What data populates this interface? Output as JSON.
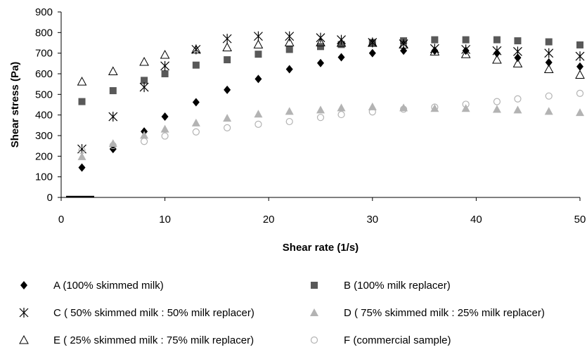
{
  "chart_data": {
    "type": "scatter",
    "xlabel": "Shear rate (1/s)",
    "ylabel": "Shear stress (Pa)",
    "xlim": [
      0,
      50
    ],
    "ylim": [
      0,
      900
    ],
    "x_ticks": [
      "0",
      "10",
      "20",
      "30",
      "40",
      "50"
    ],
    "y_ticks": [
      "0",
      "100",
      "200",
      "300",
      "400",
      "500",
      "600",
      "700",
      "800",
      "900"
    ],
    "grid": false,
    "legend_position": "bottom",
    "series": [
      {
        "name": "A (100% skimmed milk)",
        "marker": "diamond-filled",
        "color": "#000000",
        "points": [
          [
            2,
            145
          ],
          [
            5,
            235
          ],
          [
            8,
            320
          ],
          [
            10,
            392
          ],
          [
            13,
            462
          ],
          [
            16,
            522
          ],
          [
            19,
            575
          ],
          [
            22,
            622
          ],
          [
            25,
            652
          ],
          [
            27,
            680
          ],
          [
            30,
            700
          ],
          [
            33,
            712
          ],
          [
            36,
            712
          ],
          [
            39,
            712
          ],
          [
            42,
            700
          ],
          [
            44,
            678
          ],
          [
            47,
            655
          ],
          [
            50,
            635
          ]
        ]
      },
      {
        "name": "B (100% milk replacer)",
        "marker": "square-filled",
        "color": "#595959",
        "points": [
          [
            2,
            465
          ],
          [
            5,
            518
          ],
          [
            8,
            568
          ],
          [
            10,
            600
          ],
          [
            13,
            642
          ],
          [
            16,
            668
          ],
          [
            19,
            695
          ],
          [
            22,
            718
          ],
          [
            25,
            732
          ],
          [
            27,
            742
          ],
          [
            30,
            752
          ],
          [
            33,
            760
          ],
          [
            36,
            765
          ],
          [
            39,
            765
          ],
          [
            42,
            765
          ],
          [
            44,
            760
          ],
          [
            47,
            755
          ],
          [
            50,
            740
          ]
        ]
      },
      {
        "name": "C ( 50% skimmed milk : 50% milk replacer)",
        "marker": "star",
        "color": "#000000",
        "points": [
          [
            2,
            235
          ],
          [
            5,
            392
          ],
          [
            8,
            535
          ],
          [
            10,
            638
          ],
          [
            13,
            718
          ],
          [
            16,
            770
          ],
          [
            19,
            782
          ],
          [
            22,
            782
          ],
          [
            25,
            775
          ],
          [
            27,
            765
          ],
          [
            30,
            752
          ],
          [
            33,
            745
          ],
          [
            36,
            722
          ],
          [
            39,
            718
          ],
          [
            42,
            712
          ],
          [
            44,
            708
          ],
          [
            47,
            700
          ],
          [
            50,
            685
          ]
        ]
      },
      {
        "name": "D ( 75% skimmed milk : 25% milk replacer)",
        "marker": "triangle-filled",
        "color": "#b3b3b3",
        "points": [
          [
            2,
            198
          ],
          [
            5,
            262
          ],
          [
            8,
            302
          ],
          [
            10,
            332
          ],
          [
            13,
            362
          ],
          [
            16,
            385
          ],
          [
            19,
            405
          ],
          [
            22,
            418
          ],
          [
            25,
            425
          ],
          [
            27,
            435
          ],
          [
            30,
            440
          ],
          [
            33,
            435
          ],
          [
            36,
            432
          ],
          [
            39,
            432
          ],
          [
            42,
            428
          ],
          [
            44,
            425
          ],
          [
            47,
            418
          ],
          [
            50,
            412
          ]
        ]
      },
      {
        "name": "E ( 25% skimmed milk : 75% milk replacer)",
        "marker": "triangle-open",
        "color": "#000000",
        "points": [
          [
            2,
            562
          ],
          [
            5,
            612
          ],
          [
            8,
            658
          ],
          [
            10,
            692
          ],
          [
            13,
            718
          ],
          [
            16,
            728
          ],
          [
            19,
            742
          ],
          [
            22,
            752
          ],
          [
            25,
            752
          ],
          [
            27,
            750
          ],
          [
            30,
            750
          ],
          [
            33,
            742
          ],
          [
            36,
            708
          ],
          [
            39,
            695
          ],
          [
            42,
            668
          ],
          [
            44,
            650
          ],
          [
            47,
            622
          ],
          [
            50,
            595
          ]
        ]
      },
      {
        "name": "F (commercial sample)",
        "marker": "circle-open",
        "color": "#b3b3b3",
        "points": [
          [
            2,
            228
          ],
          [
            5,
            252
          ],
          [
            8,
            272
          ],
          [
            10,
            298
          ],
          [
            13,
            318
          ],
          [
            16,
            338
          ],
          [
            19,
            355
          ],
          [
            22,
            368
          ],
          [
            25,
            388
          ],
          [
            27,
            402
          ],
          [
            30,
            415
          ],
          [
            33,
            428
          ],
          [
            36,
            438
          ],
          [
            39,
            452
          ],
          [
            42,
            465
          ],
          [
            44,
            478
          ],
          [
            47,
            492
          ],
          [
            50,
            505
          ]
        ]
      }
    ]
  }
}
